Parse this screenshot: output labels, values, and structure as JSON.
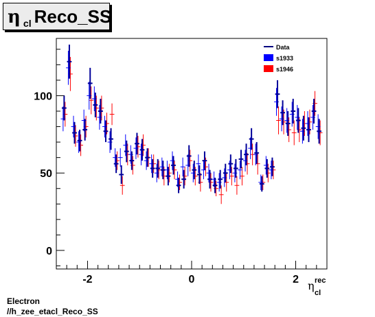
{
  "title": {
    "symbol": "η",
    "subscript": "cl",
    "text": "Reco_SS"
  },
  "footer": {
    "line1": "Electron",
    "line2": "//h_zee_etacl_Reco_SS"
  },
  "chart_data": {
    "type": "scatter",
    "xlabel": "η",
    "xlabel_sub": "cl",
    "xlabel_sup": "rec",
    "ylabel": "",
    "xlim": [
      -2.6,
      2.6
    ],
    "ylim": [
      -12,
      137
    ],
    "x_ticks": [
      -2,
      0,
      2
    ],
    "x_tick_labels": [
      "-2",
      "0",
      "2"
    ],
    "y_ticks": [
      0,
      50,
      100
    ],
    "y_tick_labels": [
      "0",
      "50",
      "100"
    ],
    "grid": false,
    "legend_position": "top-right",
    "legend": [
      {
        "label": "Data",
        "color": "#000080",
        "style": "line"
      },
      {
        "label": "s1933",
        "color": "#0000ff",
        "style": "box"
      },
      {
        "label": "s1946",
        "color": "#ff0000",
        "style": "box"
      }
    ],
    "series": [
      {
        "name": "Data",
        "color": "#000099",
        "x": [
          -2.45,
          -2.35,
          -2.25,
          -2.15,
          -2.05,
          -1.95,
          -1.85,
          -1.75,
          -1.65,
          -1.55,
          -1.45,
          -1.35,
          -1.25,
          -1.15,
          -1.05,
          -0.95,
          -0.85,
          -0.75,
          -0.65,
          -0.55,
          -0.45,
          -0.35,
          -0.25,
          -0.15,
          -0.05,
          0.05,
          0.15,
          0.25,
          0.35,
          0.45,
          0.55,
          0.65,
          0.75,
          0.85,
          0.95,
          1.05,
          1.15,
          1.25,
          1.35,
          1.45,
          1.55,
          1.65,
          1.75,
          1.85,
          1.95,
          2.05,
          2.15,
          2.25,
          2.35,
          2.45
        ],
        "y": [
          92,
          122,
          76,
          71,
          78,
          108,
          94,
          90,
          77,
          72,
          56,
          49,
          64,
          58,
          69,
          65,
          60,
          53,
          53,
          52,
          48,
          55,
          42,
          46,
          61,
          52,
          49,
          58,
          46,
          42,
          46,
          50,
          56,
          53,
          59,
          62,
          72,
          63,
          43,
          53,
          54,
          101,
          89,
          82,
          90,
          84,
          79,
          78,
          90,
          77
        ],
        "err": [
          8,
          11,
          7,
          7,
          7,
          10,
          8,
          8,
          7,
          7,
          6,
          6,
          7,
          6,
          7,
          7,
          6,
          6,
          6,
          6,
          6,
          6,
          5,
          6,
          7,
          6,
          6,
          6,
          6,
          5,
          6,
          6,
          6,
          6,
          6,
          7,
          7,
          7,
          5,
          6,
          6,
          9,
          8,
          8,
          8,
          8,
          8,
          8,
          8,
          8
        ]
      },
      {
        "name": "s1933",
        "color": "#0000ff",
        "x": [
          -2.45,
          -2.35,
          -2.25,
          -2.15,
          -2.05,
          -1.95,
          -1.85,
          -1.75,
          -1.65,
          -1.55,
          -1.45,
          -1.35,
          -1.25,
          -1.15,
          -1.05,
          -0.95,
          -0.85,
          -0.75,
          -0.65,
          -0.55,
          -0.45,
          -0.35,
          -0.25,
          -0.15,
          -0.05,
          0.05,
          0.15,
          0.25,
          0.35,
          0.45,
          0.55,
          0.65,
          0.75,
          0.85,
          0.95,
          1.05,
          1.15,
          1.25,
          1.35,
          1.45,
          1.55,
          1.65,
          1.75,
          1.85,
          1.95,
          2.05,
          2.15,
          2.25,
          2.35,
          2.45
        ],
        "y": [
          85,
          118,
          80,
          70,
          84,
          100,
          98,
          86,
          80,
          70,
          60,
          60,
          68,
          62,
          66,
          62,
          58,
          56,
          50,
          54,
          52,
          58,
          46,
          54,
          55,
          50,
          56,
          52,
          50,
          46,
          44,
          47,
          52,
          50,
          52,
          58,
          66,
          62,
          44,
          55,
          52,
          96,
          85,
          84,
          88,
          86,
          77,
          82,
          86,
          80
        ],
        "err": [
          8,
          11,
          7,
          7,
          7,
          9,
          8,
          8,
          7,
          7,
          6,
          6,
          7,
          6,
          7,
          7,
          6,
          6,
          6,
          6,
          6,
          6,
          5,
          6,
          7,
          6,
          6,
          6,
          6,
          5,
          6,
          6,
          6,
          6,
          6,
          7,
          7,
          7,
          5,
          6,
          6,
          9,
          8,
          8,
          8,
          8,
          8,
          8,
          8,
          8
        ]
      },
      {
        "name": "s1946",
        "color": "#ff0000",
        "x": [
          -2.45,
          -2.35,
          -2.25,
          -2.15,
          -2.05,
          -1.95,
          -1.85,
          -1.75,
          -1.65,
          -1.55,
          -1.45,
          -1.35,
          -1.25,
          -1.15,
          -1.05,
          -0.95,
          -0.85,
          -0.75,
          -0.65,
          -0.55,
          -0.45,
          -0.35,
          -0.25,
          -0.15,
          -0.05,
          0.05,
          0.15,
          0.25,
          0.35,
          0.45,
          0.55,
          0.65,
          0.75,
          0.85,
          0.95,
          1.05,
          1.15,
          1.25,
          1.35,
          1.45,
          1.55,
          1.65,
          1.75,
          1.85,
          1.95,
          2.05,
          2.15,
          2.25,
          2.35,
          2.45
        ],
        "y": [
          88,
          114,
          74,
          68,
          80,
          97,
          92,
          92,
          82,
          88,
          58,
          42,
          62,
          55,
          67,
          68,
          60,
          56,
          52,
          48,
          50,
          52,
          44,
          48,
          58,
          48,
          44,
          54,
          44,
          40,
          36,
          44,
          48,
          42,
          48,
          56,
          62,
          56,
          44,
          50,
          52,
          84,
          83,
          78,
          76,
          78,
          82,
          83,
          95,
          76
        ],
        "err": [
          8,
          11,
          7,
          7,
          7,
          9,
          8,
          8,
          7,
          7,
          6,
          6,
          7,
          6,
          7,
          7,
          6,
          6,
          6,
          6,
          6,
          6,
          5,
          6,
          7,
          6,
          6,
          6,
          6,
          5,
          6,
          6,
          6,
          6,
          6,
          7,
          7,
          7,
          5,
          6,
          6,
          9,
          8,
          8,
          8,
          8,
          8,
          8,
          8,
          8
        ]
      }
    ]
  }
}
